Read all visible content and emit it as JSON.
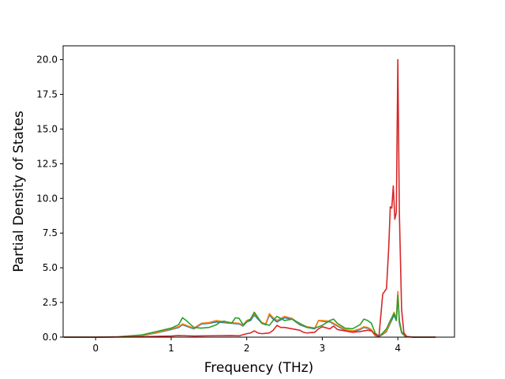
{
  "chart_data": {
    "type": "line",
    "title": "",
    "xlabel": "Frequency (THz)",
    "ylabel": "Partial Density of States",
    "xlim": [
      -0.43,
      4.75
    ],
    "ylim": [
      0,
      21.0
    ],
    "xticks": [
      0,
      1,
      2,
      3,
      4
    ],
    "yticks": [
      0.0,
      2.5,
      5.0,
      7.5,
      10.0,
      12.5,
      15.0,
      17.5,
      20.0
    ],
    "xtick_labels": [
      "0",
      "1",
      "2",
      "3",
      "4"
    ],
    "ytick_labels": [
      "0.0",
      "2.5",
      "5.0",
      "7.5",
      "10.0",
      "12.5",
      "15.0",
      "17.5",
      "20.0"
    ],
    "grid": false,
    "legend": "none",
    "series": [
      {
        "color": "#1f77b4",
        "x": [
          -0.42,
          0.0,
          0.3,
          0.6,
          0.8,
          1.0,
          1.1,
          1.15,
          1.3,
          1.4,
          1.5,
          1.6,
          1.7,
          1.8,
          1.9,
          1.95,
          2.0,
          2.05,
          2.1,
          2.2,
          2.25,
          2.3,
          2.35,
          2.4,
          2.5,
          2.6,
          2.7,
          2.8,
          2.9,
          2.95,
          3.0,
          3.1,
          3.2,
          3.3,
          3.4,
          3.5,
          3.55,
          3.6,
          3.65,
          3.7,
          3.75,
          3.8,
          3.85,
          3.9,
          3.95,
          3.98,
          4.0,
          4.02,
          4.05,
          4.1,
          4.2,
          4.5
        ],
        "y": [
          0,
          0,
          0.02,
          0.1,
          0.3,
          0.55,
          0.7,
          0.9,
          0.6,
          0.95,
          1.0,
          1.1,
          1.05,
          1.0,
          0.95,
          0.8,
          1.1,
          1.2,
          1.6,
          1.0,
          0.9,
          1.6,
          1.3,
          1.1,
          1.4,
          1.3,
          0.9,
          0.7,
          0.6,
          1.2,
          1.15,
          1.1,
          0.8,
          0.5,
          0.4,
          0.55,
          0.7,
          0.65,
          0.5,
          0.1,
          0.05,
          0.2,
          0.4,
          1.0,
          1.6,
          1.2,
          3.2,
          1.0,
          0.3,
          0.05,
          0,
          0
        ]
      },
      {
        "color": "#ff7f0e",
        "x": [
          -0.42,
          0.0,
          0.3,
          0.6,
          0.8,
          1.0,
          1.1,
          1.15,
          1.3,
          1.4,
          1.5,
          1.6,
          1.7,
          1.8,
          1.9,
          1.95,
          2.0,
          2.05,
          2.1,
          2.2,
          2.25,
          2.3,
          2.35,
          2.4,
          2.5,
          2.6,
          2.7,
          2.8,
          2.9,
          2.95,
          3.0,
          3.1,
          3.2,
          3.3,
          3.4,
          3.5,
          3.55,
          3.6,
          3.65,
          3.7,
          3.75,
          3.8,
          3.85,
          3.9,
          3.95,
          3.98,
          4.0,
          4.02,
          4.05,
          4.1,
          4.2,
          4.5
        ],
        "y": [
          0,
          0,
          0.02,
          0.12,
          0.32,
          0.6,
          0.75,
          0.95,
          0.65,
          1.0,
          1.05,
          1.2,
          1.1,
          1.05,
          1.0,
          0.85,
          1.2,
          1.3,
          1.7,
          1.05,
          0.95,
          1.7,
          1.4,
          1.2,
          1.5,
          1.35,
          0.95,
          0.75,
          0.65,
          1.2,
          1.2,
          1.15,
          0.85,
          0.55,
          0.45,
          0.6,
          0.75,
          0.7,
          0.55,
          0.12,
          0.06,
          0.25,
          0.45,
          1.1,
          1.8,
          1.3,
          3.3,
          1.1,
          0.35,
          0.05,
          0,
          0
        ]
      },
      {
        "color": "#2ca02c",
        "x": [
          -0.42,
          0.0,
          0.3,
          0.6,
          0.8,
          1.0,
          1.1,
          1.15,
          1.2,
          1.3,
          1.4,
          1.5,
          1.6,
          1.65,
          1.7,
          1.8,
          1.85,
          1.9,
          1.95,
          2.0,
          2.05,
          2.1,
          2.2,
          2.3,
          2.35,
          2.4,
          2.5,
          2.6,
          2.7,
          2.8,
          2.9,
          3.0,
          3.1,
          3.15,
          3.2,
          3.3,
          3.4,
          3.5,
          3.55,
          3.6,
          3.65,
          3.7,
          3.75,
          3.8,
          3.85,
          3.9,
          3.95,
          3.98,
          4.0,
          4.02,
          4.05,
          4.1,
          4.2,
          4.5
        ],
        "y": [
          0,
          0,
          0.03,
          0.15,
          0.4,
          0.65,
          0.9,
          1.4,
          1.2,
          0.7,
          0.65,
          0.7,
          0.9,
          1.1,
          1.15,
          1.0,
          1.4,
          1.35,
          0.9,
          1.1,
          1.3,
          1.8,
          1.0,
          0.85,
          1.2,
          1.5,
          1.2,
          1.3,
          1.0,
          0.7,
          0.65,
          0.85,
          1.2,
          1.3,
          1.0,
          0.65,
          0.6,
          0.9,
          1.3,
          1.2,
          1.0,
          0.3,
          0.05,
          0.3,
          0.6,
          1.2,
          1.7,
          1.2,
          3.0,
          1.2,
          0.4,
          0.05,
          0,
          0
        ]
      },
      {
        "color": "#d62728",
        "x": [
          -0.42,
          0.0,
          0.5,
          1.0,
          1.1,
          1.2,
          1.3,
          1.5,
          1.8,
          1.9,
          2.0,
          2.05,
          2.1,
          2.15,
          2.2,
          2.3,
          2.35,
          2.4,
          2.45,
          2.5,
          2.6,
          2.7,
          2.75,
          2.8,
          2.9,
          2.95,
          3.0,
          3.1,
          3.15,
          3.2,
          3.3,
          3.4,
          3.5,
          3.6,
          3.65,
          3.7,
          3.75,
          3.8,
          3.85,
          3.88,
          3.9,
          3.92,
          3.94,
          3.96,
          3.98,
          4.0,
          4.02,
          4.05,
          4.08,
          4.12,
          4.2,
          4.5
        ],
        "y": [
          0,
          0,
          0.02,
          0.08,
          0.12,
          0.1,
          0.08,
          0.1,
          0.12,
          0.1,
          0.25,
          0.3,
          0.45,
          0.3,
          0.25,
          0.3,
          0.5,
          0.85,
          0.7,
          0.7,
          0.6,
          0.5,
          0.35,
          0.3,
          0.35,
          0.6,
          0.75,
          0.6,
          0.8,
          0.55,
          0.45,
          0.35,
          0.4,
          0.5,
          0.45,
          0.2,
          0.05,
          3.1,
          3.5,
          6.5,
          9.4,
          9.3,
          10.9,
          8.5,
          9.0,
          20.0,
          9.0,
          2.0,
          0.3,
          0.05,
          0,
          0
        ]
      }
    ]
  }
}
